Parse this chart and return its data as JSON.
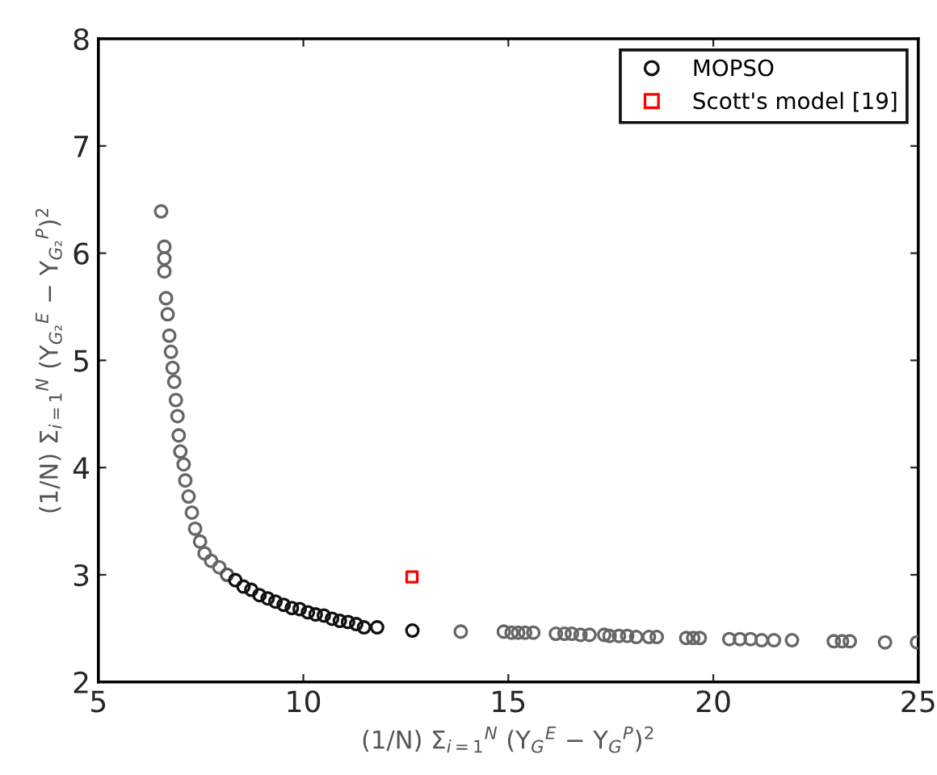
{
  "chart_data": {
    "type": "scatter",
    "xlabel": "(1/N) Σ$_{i=1}$$^{N}$ (Y$_{G}$$^{E}$ − Y$_{G}$$^{P}$)$^{2}$",
    "ylabel": "(1/N) Σ$_{i=1}$$^{N}$ (Y$_{G₂}$$^{E}$ − Y$_{G₂}$$^{P}$)$^{2}$",
    "xlim": [
      5,
      25
    ],
    "ylim": [
      2,
      8
    ],
    "xticks": [
      5,
      10,
      15,
      20,
      25
    ],
    "yticks": [
      2,
      3,
      4,
      5,
      6,
      7,
      8
    ],
    "grid": false,
    "legend": "top right",
    "series": [
      {
        "name": "MOPSO",
        "marker": "circle",
        "color": "#555555",
        "x": [
          6.53,
          6.61,
          6.61,
          6.61,
          6.65,
          6.69,
          6.73,
          6.77,
          6.81,
          6.85,
          6.89,
          6.93,
          6.96,
          7.0,
          7.08,
          7.12,
          7.2,
          7.28,
          7.36,
          7.48,
          7.59,
          7.75,
          7.95,
          8.14,
          8.34,
          8.54,
          8.73,
          8.93,
          9.13,
          9.32,
          9.52,
          9.72,
          9.91,
          10.11,
          10.3,
          10.5,
          10.7,
          10.89,
          11.09,
          11.29,
          11.48,
          11.8,
          12.66,
          13.84,
          14.89,
          15.08,
          15.24,
          15.41,
          15.61,
          16.16,
          16.37,
          16.55,
          16.76,
          16.98,
          17.34,
          17.47,
          17.7,
          17.9,
          18.12,
          18.43,
          18.62,
          19.34,
          19.51,
          19.67,
          20.39,
          20.65,
          20.91,
          21.18,
          21.48,
          21.92,
          22.94,
          23.14,
          23.33,
          24.19,
          24.97
        ],
        "values": [
          6.39,
          6.06,
          5.95,
          5.83,
          5.58,
          5.43,
          5.23,
          5.08,
          4.93,
          4.8,
          4.63,
          4.48,
          4.3,
          4.15,
          4.03,
          3.88,
          3.73,
          3.58,
          3.43,
          3.31,
          3.2,
          3.13,
          3.07,
          3.0,
          2.95,
          2.89,
          2.86,
          2.81,
          2.78,
          2.75,
          2.72,
          2.69,
          2.68,
          2.65,
          2.63,
          2.62,
          2.59,
          2.57,
          2.56,
          2.54,
          2.51,
          2.51,
          2.48,
          2.47,
          2.47,
          2.46,
          2.46,
          2.46,
          2.46,
          2.45,
          2.45,
          2.45,
          2.44,
          2.44,
          2.44,
          2.43,
          2.43,
          2.43,
          2.42,
          2.42,
          2.42,
          2.41,
          2.41,
          2.41,
          2.4,
          2.4,
          2.4,
          2.39,
          2.39,
          2.39,
          2.38,
          2.38,
          2.38,
          2.37,
          2.37
        ],
        "colors": [
          "#666666",
          "#666666",
          "#666666",
          "#666666",
          "#666666",
          "#666666",
          "#666666",
          "#666666",
          "#666666",
          "#666666",
          "#666666",
          "#666666",
          "#666666",
          "#666666",
          "#666666",
          "#666666",
          "#666666",
          "#666666",
          "#666666",
          "#666666",
          "#666666",
          "#666666",
          "#666666",
          "#555555",
          "#111111",
          "#111111",
          "#111111",
          "#111111",
          "#111111",
          "#111111",
          "#111111",
          "#111111",
          "#111111",
          "#111111",
          "#111111",
          "#111111",
          "#111111",
          "#111111",
          "#111111",
          "#111111",
          "#111111",
          "#111111",
          "#111111",
          "#666666",
          "#666666",
          "#666666",
          "#666666",
          "#666666",
          "#666666",
          "#666666",
          "#666666",
          "#666666",
          "#666666",
          "#666666",
          "#666666",
          "#666666",
          "#666666",
          "#666666",
          "#666666",
          "#666666",
          "#666666",
          "#666666",
          "#666666",
          "#666666",
          "#666666",
          "#666666",
          "#666666",
          "#666666",
          "#666666",
          "#666666",
          "#666666",
          "#666666",
          "#666666",
          "#666666",
          "#666666"
        ]
      },
      {
        "name": "Scott's model [19]",
        "marker": "square",
        "color": "#ff0000",
        "x": [
          12.65
        ],
        "values": [
          2.98
        ]
      }
    ]
  }
}
